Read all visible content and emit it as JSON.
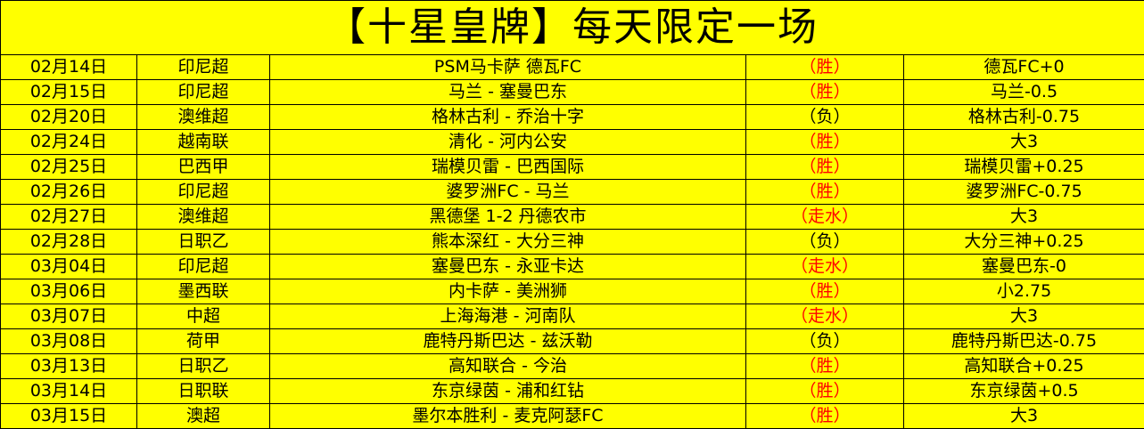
{
  "title": "【十星皇牌】每天限定一场",
  "colors": {
    "background": "#ffff00",
    "win": "#ff0000",
    "push": "#ff0000",
    "loss": "#000000"
  },
  "rows": [
    {
      "date": "02月14日",
      "league": "印尼超",
      "match": "PSM马卡萨  德瓦FC",
      "result": "（胜）",
      "pick": "德瓦FC+0"
    },
    {
      "date": "02月15日",
      "league": "印尼超",
      "match": "马兰 - 塞曼巴东",
      "result": "（胜）",
      "pick": "马兰-0.5"
    },
    {
      "date": "02月20日",
      "league": "澳维超",
      "match": "格林古利 - 乔治十字",
      "result": "（负）",
      "pick": "格林古利-0.75"
    },
    {
      "date": "02月24日",
      "league": "越南联",
      "match": "清化 - 河内公安",
      "result": "（胜）",
      "pick": "大3"
    },
    {
      "date": "02月25日",
      "league": "巴西甲",
      "match": "瑞模贝雷 - 巴西国际",
      "result": "（胜）",
      "pick": "瑞模贝雷+0.25"
    },
    {
      "date": "02月26日",
      "league": "印尼超",
      "match": "婆罗洲FC - 马兰",
      "result": "（胜）",
      "pick": "婆罗洲FC-0.75"
    },
    {
      "date": "02月27日",
      "league": "澳维超",
      "match": "黑德堡 1-2 丹德农市",
      "result": "（走水）",
      "pick": "大3"
    },
    {
      "date": "02月28日",
      "league": "日职乙",
      "match": "熊本深红 - 大分三神",
      "result": "（负）",
      "pick": "大分三神+0.25"
    },
    {
      "date": "03月04日",
      "league": "印尼超",
      "match": "塞曼巴东 - 永亚卡达",
      "result": "（走水）",
      "pick": "塞曼巴东-0"
    },
    {
      "date": "03月06日",
      "league": "墨西联",
      "match": "内卡萨 - 美洲狮",
      "result": "（胜）",
      "pick": "小2.75"
    },
    {
      "date": "03月07日",
      "league": "中超",
      "match": "上海海港 - 河南队",
      "result": "（走水）",
      "pick": "大3"
    },
    {
      "date": "03月08日",
      "league": "荷甲",
      "match": "鹿特丹斯巴达 - 兹沃勒",
      "result": "（负）",
      "pick": "鹿特丹斯巴达-0.75"
    },
    {
      "date": "03月13日",
      "league": "日职乙",
      "match": "高知联合 - 今治",
      "result": "（胜）",
      "pick": "高知联合+0.25"
    },
    {
      "date": "03月14日",
      "league": "日职联",
      "match": "东京绿茵 - 浦和红钻",
      "result": "（胜）",
      "pick": "东京绿茵+0.5"
    },
    {
      "date": "03月15日",
      "league": "澳超",
      "match": "墨尔本胜利 - 麦克阿瑟FC",
      "result": "（胜）",
      "pick": "大3"
    }
  ]
}
